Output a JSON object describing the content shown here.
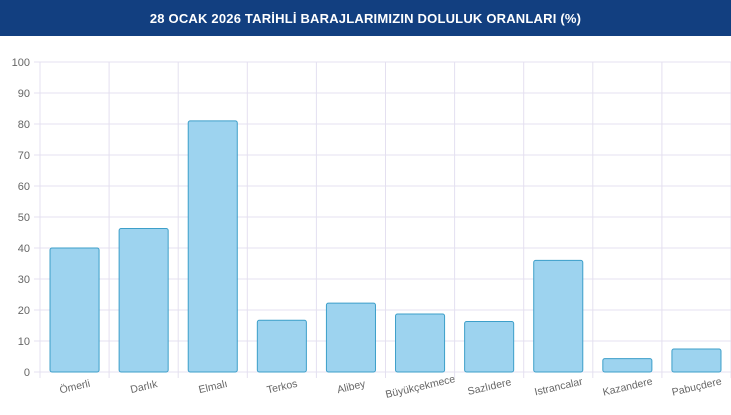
{
  "header": {
    "title": "28 OCAK 2026 TARİHLİ BARAJLARIMIZIN DOLULUK ORANLARI (%)"
  },
  "colors": {
    "header_bg": "#123f80",
    "bar_fill": "#9dd3ef",
    "bar_stroke": "#3d9fc9",
    "grid": "#e4e0f0",
    "axis_text": "#666666"
  },
  "chart_data": {
    "type": "bar",
    "title": "28 OCAK 2026 TARİHLİ BARAJLARIMIZIN DOLULUK ORANLARI (%)",
    "categories": [
      "Ömerli",
      "Darlık",
      "Elmalı",
      "Terkos",
      "Alibey",
      "Büyükçekmece",
      "Sazlıdere",
      "Istrancalar",
      "Kazandere",
      "Pabuçdere"
    ],
    "values": [
      40,
      46.3,
      81,
      16.7,
      22.2,
      18.7,
      16.3,
      36,
      4.3,
      7.4
    ],
    "ylim": [
      0,
      100
    ],
    "yticks": [
      0,
      10,
      20,
      30,
      40,
      50,
      60,
      70,
      80,
      90,
      100
    ],
    "xlabel": "",
    "ylabel": "",
    "grid": true,
    "legend": "none"
  }
}
